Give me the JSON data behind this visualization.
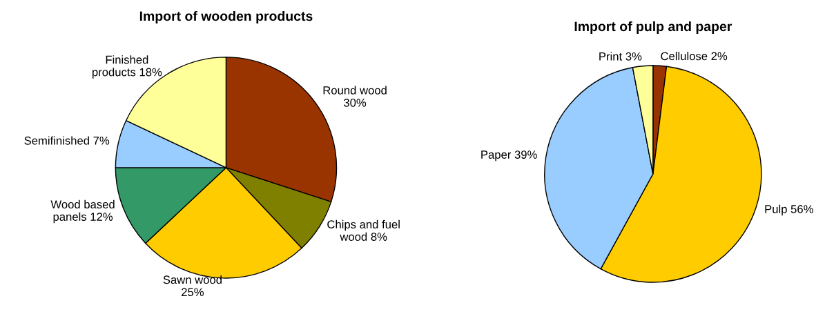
{
  "chart_data": [
    {
      "type": "pie",
      "title": "Import of wooden products",
      "categories": [
        "Round wood",
        "Chips and fuel\nwood",
        "Sawn wood",
        "Wood based\npanels",
        "Semifinished",
        "Finished\nproducts"
      ],
      "values": [
        30,
        8,
        25,
        12,
        7,
        18
      ],
      "value_labels": [
        "30%",
        "8%",
        "25%",
        "12%",
        "7%",
        "18%"
      ],
      "colors": [
        "#993300",
        "#808000",
        "#ffcc00",
        "#339966",
        "#99ccff",
        "#ffff99"
      ]
    },
    {
      "type": "pie",
      "title": "Import of pulp and paper",
      "categories": [
        "Cellulose",
        "Pulp",
        "Paper",
        "Print"
      ],
      "values": [
        2,
        56,
        39,
        3
      ],
      "value_labels": [
        "2%",
        "56%",
        "39%",
        "3%"
      ],
      "colors": [
        "#993300",
        "#ffcc00",
        "#99ccff",
        "#ffff99"
      ]
    }
  ]
}
